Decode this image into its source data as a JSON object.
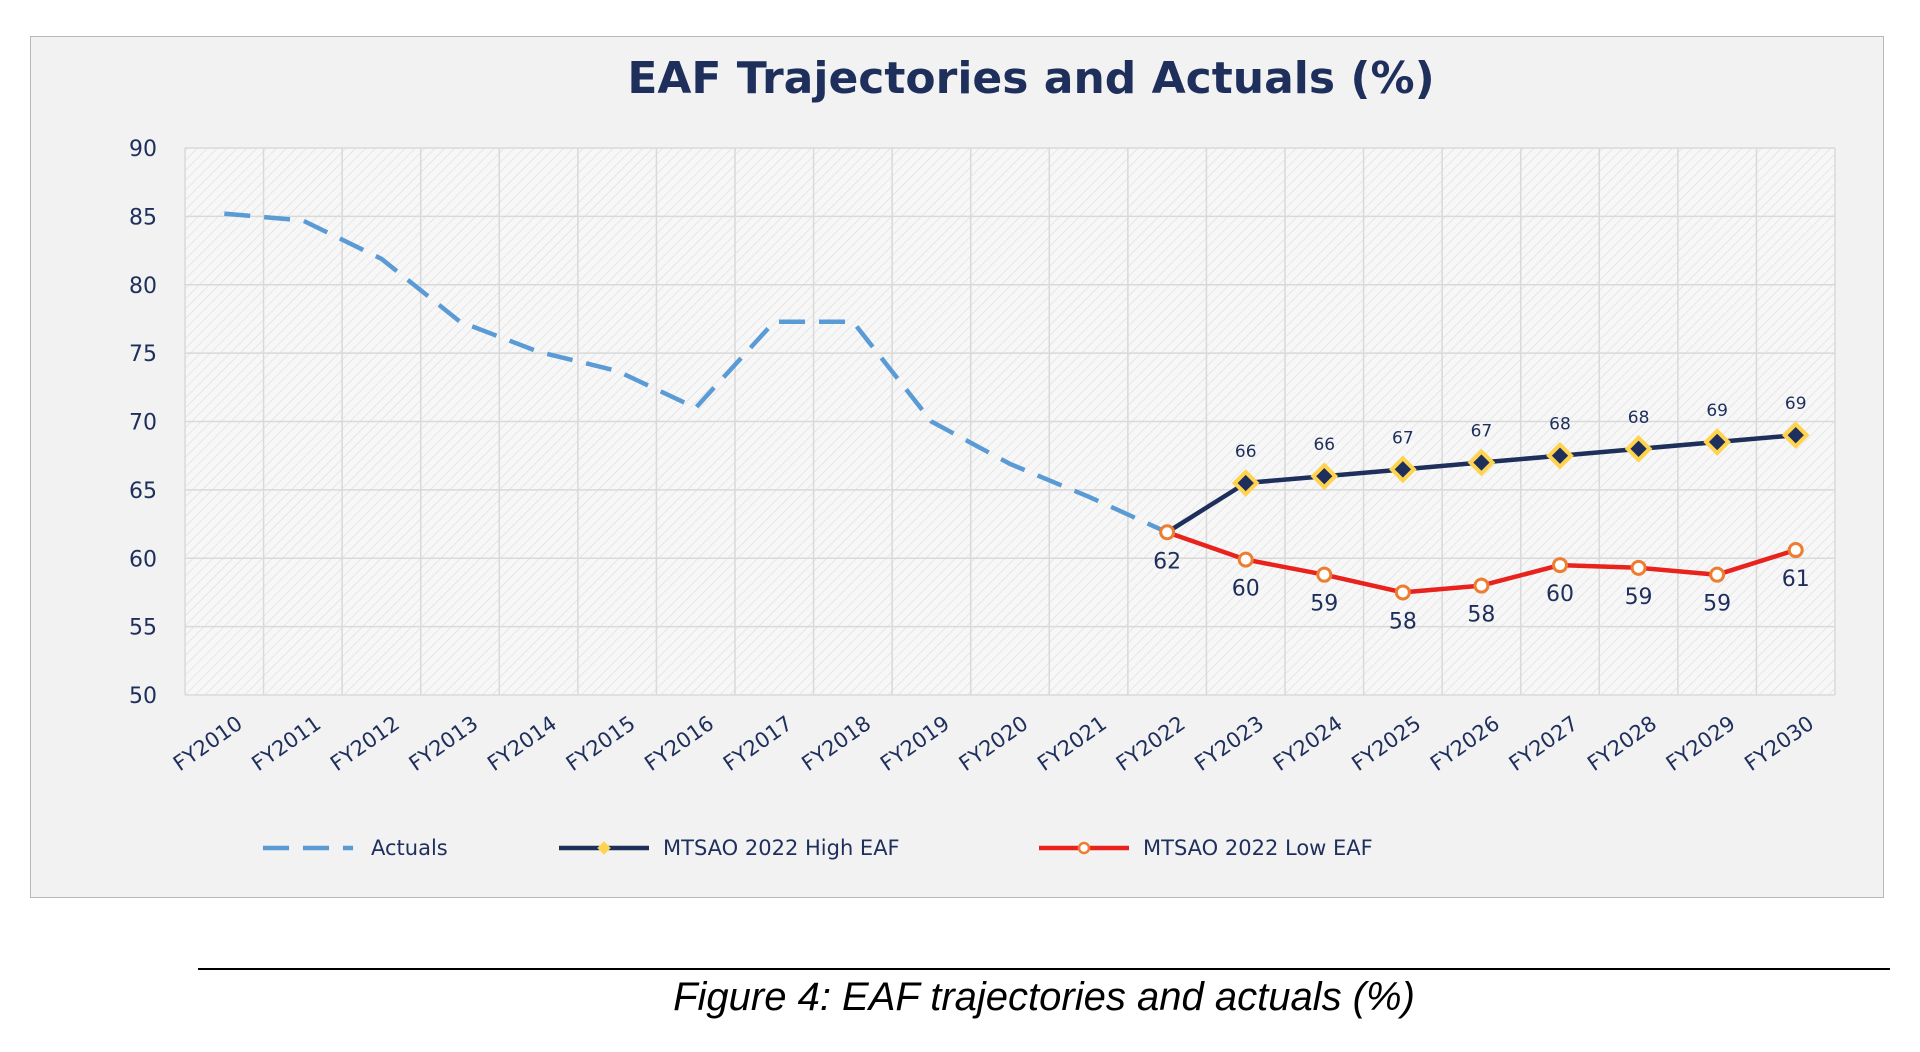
{
  "chart_data": {
    "type": "line",
    "title": "EAF Trajectories and Actuals (%)",
    "xlabel": "",
    "ylabel": "",
    "ylim": [
      50,
      90
    ],
    "yticks": [
      "50",
      "55",
      "60",
      "65",
      "70",
      "75",
      "80",
      "85",
      "90"
    ],
    "categories": [
      "FY2010",
      "FY2011",
      "FY2012",
      "FY2013",
      "FY2014",
      "FY2015",
      "FY2016",
      "FY2017",
      "FY2018",
      "FY2019",
      "FY2020",
      "FY2021",
      "FY2022",
      "FY2023",
      "FY2024",
      "FY2025",
      "FY2026",
      "FY2027",
      "FY2028",
      "FY2029",
      "FY2030"
    ],
    "grid": true,
    "legend_position": "bottom",
    "series": [
      {
        "name": "Actuals",
        "color": "#5b9bd5",
        "style": "dashed",
        "values": [
          85.2,
          84.7,
          81.9,
          77.3,
          75.1,
          73.7,
          71.0,
          77.3,
          77.3,
          70.0,
          66.9,
          64.5,
          61.9,
          null,
          null,
          null,
          null,
          null,
          null,
          null,
          null
        ],
        "labels": []
      },
      {
        "name": "MTSAO 2022 High EAF",
        "color": "#1f2f5c",
        "marker_color": "#ffd34e",
        "style": "solid",
        "values": [
          null,
          null,
          null,
          null,
          null,
          null,
          null,
          null,
          null,
          null,
          null,
          null,
          61.9,
          65.5,
          66.0,
          66.5,
          67.0,
          67.5,
          68.0,
          68.5,
          69.0
        ],
        "labels": [
          "",
          "",
          "",
          "",
          "",
          "",
          "",
          "",
          "",
          "",
          "",
          "",
          "",
          "66",
          "66",
          "67",
          "67",
          "68",
          "68",
          "69",
          "69"
        ]
      },
      {
        "name": "MTSAO 2022 Low EAF",
        "color": "#e8231d",
        "marker_color": "#ed7d31",
        "style": "solid",
        "values": [
          null,
          null,
          null,
          null,
          null,
          null,
          null,
          null,
          null,
          null,
          null,
          null,
          61.9,
          59.9,
          58.8,
          57.5,
          58.0,
          59.5,
          59.3,
          58.8,
          60.6
        ],
        "labels": [
          "",
          "",
          "",
          "",
          "",
          "",
          "",
          "",
          "",
          "",
          "",
          "",
          "62",
          "60",
          "59",
          "58",
          "58",
          "60",
          "59",
          "59",
          "61"
        ]
      }
    ]
  },
  "caption": "Figure 4: EAF trajectories and actuals (%)",
  "colors": {
    "frame_bg": "#f2f2f2",
    "title": "#1f2f5c",
    "axis_text": "#1f2f5c",
    "grid": "#d9d9d9"
  }
}
